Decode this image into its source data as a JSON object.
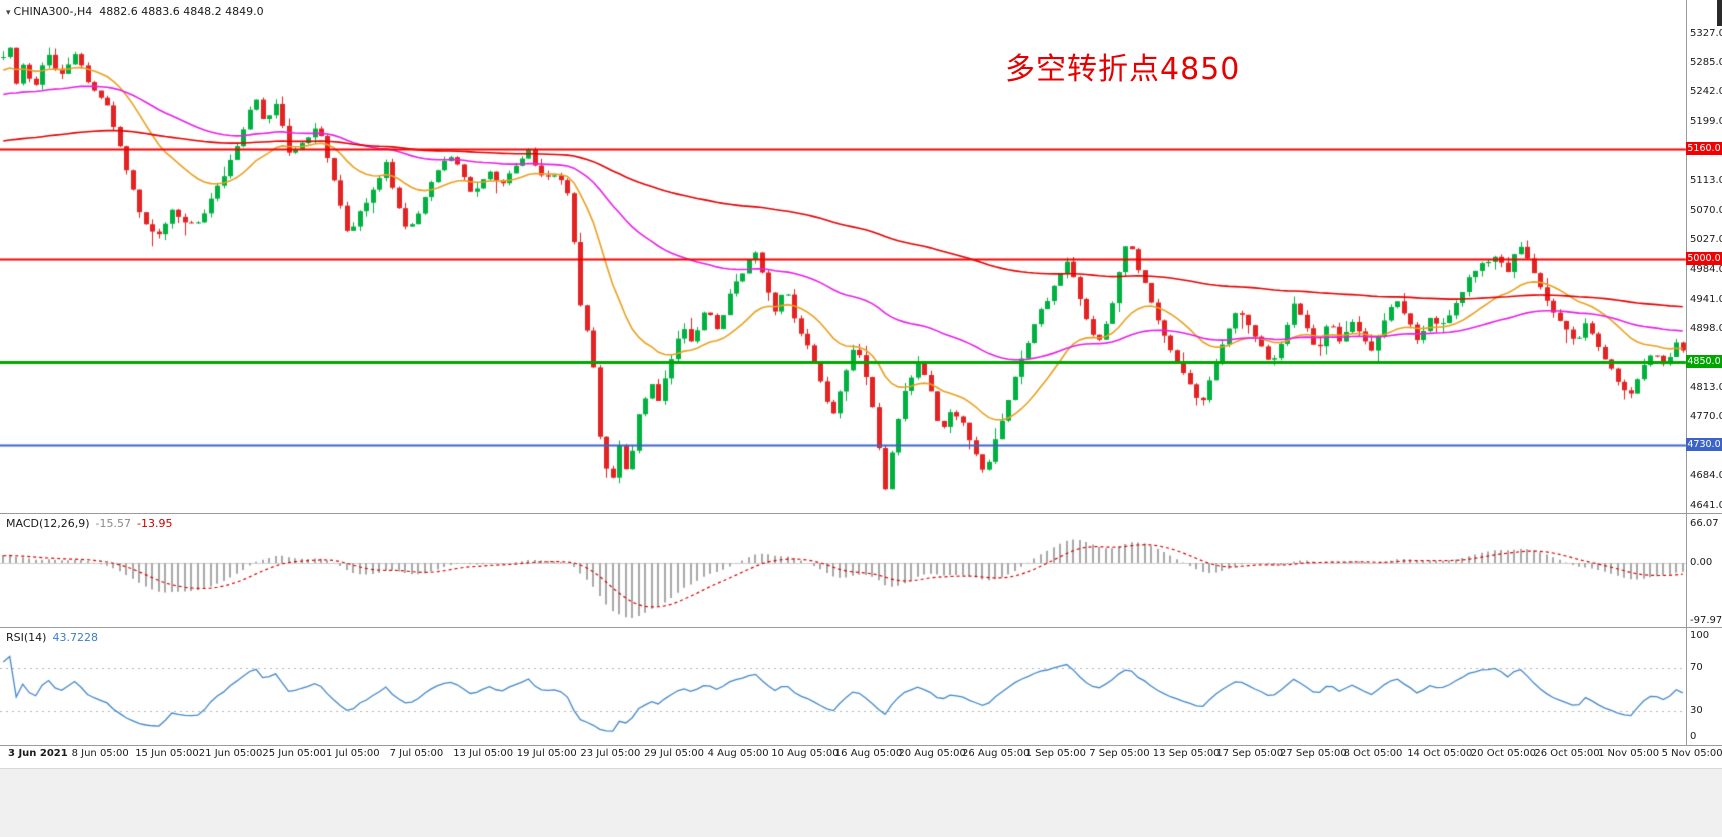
{
  "window": {
    "symbol": "CHINA300-,H4",
    "ohlc": "4882.6 4883.6 4848.2 4849.0"
  },
  "annotation": {
    "text": "多空转折点4850",
    "color": "#e60000"
  },
  "chart_data": {
    "type": "candlestick",
    "symbol": "CHINA300-",
    "timeframe": "H4",
    "quote": {
      "open": 4882.6,
      "high": 4883.6,
      "low": 4848.2,
      "close": 4849.0
    },
    "candle_up_color": "#00b140",
    "candle_down_color": "#e32222",
    "bars_visible": 260,
    "warmup_bars": 130,
    "y_axis": {
      "max": 5327.0,
      "min": 4641.0,
      "ticks": [
        5327.0,
        5285.0,
        5242.0,
        5199.0,
        5113.0,
        5070.0,
        5027.0,
        4984.0,
        4941.0,
        4898.0,
        4813.0,
        4770.0,
        4684.0,
        4641.0
      ]
    },
    "x_axis": {
      "labels": [
        "3 Jun 2021",
        "8 Jun 05:00",
        "15 Jun 05:00",
        "21 Jun 05:00",
        "25 Jun 05:00",
        "1 Jul 05:00",
        "7 Jul 05:00",
        "13 Jul 05:00",
        "19 Jul 05:00",
        "23 Jul 05:00",
        "29 Jul 05:00",
        "4 Aug 05:00",
        "10 Aug 05:00",
        "16 Aug 05:00",
        "20 Aug 05:00",
        "26 Aug 05:00",
        "1 Sep 05:00",
        "7 Sep 05:00",
        "13 Sep 05:00",
        "17 Sep 05:00",
        "27 Sep 05:00",
        "8 Oct 05:00",
        "14 Oct 05:00",
        "20 Oct 05:00",
        "26 Oct 05:00",
        "1 Nov 05:00",
        "5 Nov 05:00"
      ]
    },
    "levels": [
      {
        "price": 5160.0,
        "label": "5160.0",
        "color": "#f40000",
        "width": 2
      },
      {
        "price": 5000.0,
        "label": "5000.0",
        "color": "#f40000",
        "width": 2
      },
      {
        "price": 4850.0,
        "label": "4850.0",
        "color": "#00a500",
        "width": 3
      },
      {
        "price": 4730.0,
        "label": "4730.0",
        "color": "#3c64c8",
        "width": 2
      }
    ],
    "moving_averages": [
      {
        "name": "fast-ma",
        "period": 20,
        "color": "#e8a020"
      },
      {
        "name": "medium-ma",
        "period": 68,
        "color": "#e520e5"
      },
      {
        "name": "slow-ma",
        "period": 190,
        "color": "#e00000"
      }
    ],
    "indicators": {
      "macd": {
        "label": "MACD(12,26,9)",
        "value_main": "-15.57",
        "value_signal": "-13.95",
        "scale": [
          "66.07",
          "0.00",
          "-97.97"
        ],
        "range_max": 66.07,
        "range_min": -97.97,
        "histogram_color": "#a8a8a8",
        "signal_color": "#d40000",
        "params": [
          12,
          26,
          9
        ]
      },
      "rsi": {
        "label": "RSI(14)",
        "value": "43.7228",
        "period": 14,
        "scale": [
          100,
          70,
          30,
          0
        ],
        "levels": [
          70,
          30
        ],
        "line_color": "#4287c7"
      }
    },
    "price_path": [
      [
        -0.5,
        5040
      ],
      [
        -0.42,
        5100
      ],
      [
        -0.34,
        5180
      ],
      [
        -0.26,
        5255
      ],
      [
        -0.2,
        5205
      ],
      [
        -0.14,
        5255
      ],
      [
        -0.08,
        5215
      ],
      [
        -0.03,
        5290
      ],
      [
        0.0,
        5300
      ],
      [
        0.003,
        5325
      ],
      [
        0.007,
        5248
      ],
      [
        0.012,
        5288
      ],
      [
        0.018,
        5240
      ],
      [
        0.026,
        5296
      ],
      [
        0.034,
        5262
      ],
      [
        0.042,
        5298
      ],
      [
        0.052,
        5252
      ],
      [
        0.062,
        5216
      ],
      [
        0.072,
        5140
      ],
      [
        0.082,
        5064
      ],
      [
        0.092,
        5040
      ],
      [
        0.1,
        5072
      ],
      [
        0.108,
        5048
      ],
      [
        0.116,
        5058
      ],
      [
        0.124,
        5092
      ],
      [
        0.132,
        5130
      ],
      [
        0.14,
        5170
      ],
      [
        0.149,
        5232
      ],
      [
        0.155,
        5198
      ],
      [
        0.161,
        5232
      ],
      [
        0.17,
        5152
      ],
      [
        0.178,
        5172
      ],
      [
        0.186,
        5202
      ],
      [
        0.196,
        5115
      ],
      [
        0.205,
        5038
      ],
      [
        0.212,
        5072
      ],
      [
        0.219,
        5098
      ],
      [
        0.227,
        5138
      ],
      [
        0.233,
        5088
      ],
      [
        0.24,
        5045
      ],
      [
        0.248,
        5080
      ],
      [
        0.256,
        5118
      ],
      [
        0.264,
        5158
      ],
      [
        0.271,
        5132
      ],
      [
        0.279,
        5092
      ],
      [
        0.287,
        5132
      ],
      [
        0.295,
        5108
      ],
      [
        0.304,
        5132
      ],
      [
        0.311,
        5158
      ],
      [
        0.319,
        5118
      ],
      [
        0.328,
        5128
      ],
      [
        0.336,
        5092
      ],
      [
        0.342,
        4935
      ],
      [
        0.349,
        4872
      ],
      [
        0.355,
        4712
      ],
      [
        0.361,
        4678
      ],
      [
        0.366,
        4742
      ],
      [
        0.37,
        4688
      ],
      [
        0.377,
        4772
      ],
      [
        0.384,
        4818
      ],
      [
        0.389,
        4795
      ],
      [
        0.395,
        4848
      ],
      [
        0.402,
        4905
      ],
      [
        0.409,
        4878
      ],
      [
        0.417,
        4928
      ],
      [
        0.424,
        4898
      ],
      [
        0.431,
        4952
      ],
      [
        0.439,
        4982
      ],
      [
        0.446,
        5012
      ],
      [
        0.451,
        4968
      ],
      [
        0.457,
        4922
      ],
      [
        0.464,
        4962
      ],
      [
        0.471,
        4905
      ],
      [
        0.479,
        4868
      ],
      [
        0.486,
        4818
      ],
      [
        0.492,
        4775
      ],
      [
        0.499,
        4828
      ],
      [
        0.506,
        4878
      ],
      [
        0.512,
        4822
      ],
      [
        0.517,
        4758
      ],
      [
        0.523,
        4665
      ],
      [
        0.529,
        4742
      ],
      [
        0.536,
        4818
      ],
      [
        0.542,
        4848
      ],
      [
        0.549,
        4812
      ],
      [
        0.556,
        4740
      ],
      [
        0.562,
        4778
      ],
      [
        0.569,
        4758
      ],
      [
        0.576,
        4718
      ],
      [
        0.582,
        4685
      ],
      [
        0.589,
        4738
      ],
      [
        0.596,
        4788
      ],
      [
        0.602,
        4838
      ],
      [
        0.609,
        4888
      ],
      [
        0.616,
        4932
      ],
      [
        0.624,
        4962
      ],
      [
        0.631,
        4992
      ],
      [
        0.637,
        4958
      ],
      [
        0.644,
        4898
      ],
      [
        0.649,
        4868
      ],
      [
        0.656,
        4922
      ],
      [
        0.662,
        4982
      ],
      [
        0.667,
        5028
      ],
      [
        0.673,
        4988
      ],
      [
        0.679,
        4948
      ],
      [
        0.686,
        4898
      ],
      [
        0.693,
        4868
      ],
      [
        0.699,
        4838
      ],
      [
        0.706,
        4802
      ],
      [
        0.712,
        4795
      ],
      [
        0.719,
        4848
      ],
      [
        0.726,
        4898
      ],
      [
        0.732,
        4932
      ],
      [
        0.739,
        4902
      ],
      [
        0.746,
        4868
      ],
      [
        0.752,
        4838
      ],
      [
        0.759,
        4888
      ],
      [
        0.766,
        4948
      ],
      [
        0.772,
        4905
      ],
      [
        0.779,
        4860
      ],
      [
        0.786,
        4905
      ],
      [
        0.792,
        4878
      ],
      [
        0.799,
        4908
      ],
      [
        0.806,
        4888
      ],
      [
        0.812,
        4868
      ],
      [
        0.819,
        4908
      ],
      [
        0.826,
        4942
      ],
      [
        0.832,
        4908
      ],
      [
        0.839,
        4878
      ],
      [
        0.846,
        4918
      ],
      [
        0.852,
        4895
      ],
      [
        0.859,
        4928
      ],
      [
        0.866,
        4958
      ],
      [
        0.872,
        4985
      ],
      [
        0.879,
        4995
      ],
      [
        0.886,
        5012
      ],
      [
        0.892,
        4985
      ],
      [
        0.899,
        5018
      ],
      [
        0.906,
        4988
      ],
      [
        0.912,
        4958
      ],
      [
        0.919,
        4928
      ],
      [
        0.926,
        4898
      ],
      [
        0.932,
        4878
      ],
      [
        0.939,
        4908
      ],
      [
        0.946,
        4878
      ],
      [
        0.952,
        4848
      ],
      [
        0.959,
        4808
      ],
      [
        0.966,
        4798
      ],
      [
        0.972,
        4838
      ],
      [
        0.979,
        4868
      ],
      [
        0.985,
        4848
      ],
      [
        0.992,
        4878
      ],
      [
        1.0,
        4852
      ]
    ]
  }
}
